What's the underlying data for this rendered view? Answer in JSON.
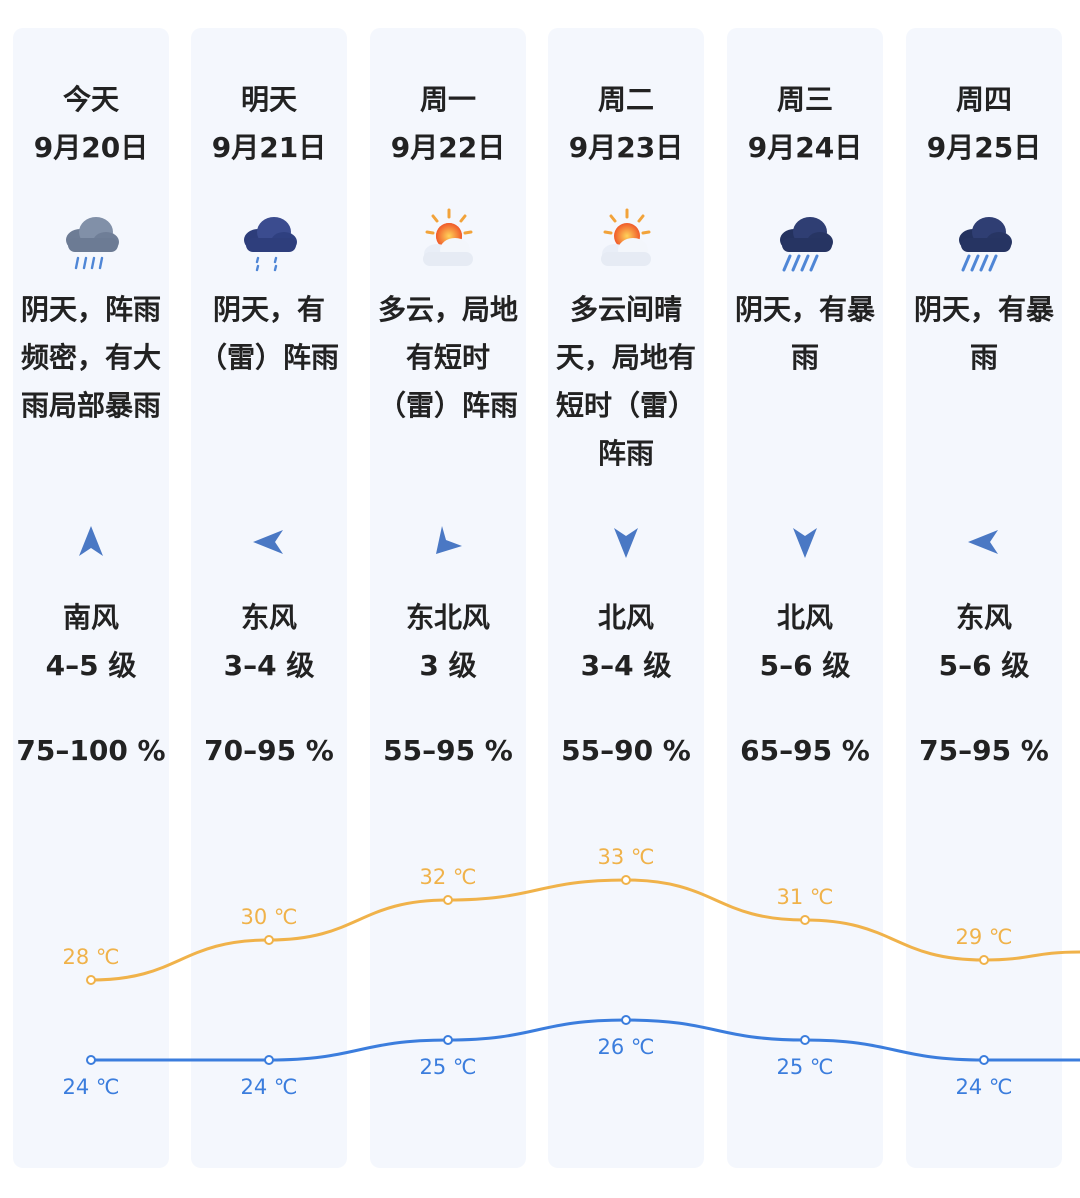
{
  "days": [
    {
      "name": "今天",
      "date": "9月20日",
      "icon": "heavy-rain-cloud-icon",
      "desc": "阴天，阵雨\n频密，有大\n雨局部暴雨",
      "wind_dir": "南风",
      "wind_level": "4–5 级",
      "wind_arrow": "north-arrow-icon",
      "humidity": "75–100 %",
      "high": "28 ℃",
      "low": "24 ℃"
    },
    {
      "name": "明天",
      "date": "9月21日",
      "icon": "rain-cloud-icon",
      "desc": "阴天，有\n（雷）阵雨",
      "wind_dir": "东风",
      "wind_level": "3–4 级",
      "wind_arrow": "west-arrow-icon",
      "humidity": "70–95 %",
      "high": "30 ℃",
      "low": "24 ℃"
    },
    {
      "name": "周一",
      "date": "9月22日",
      "icon": "partly-cloudy-sun-icon",
      "desc": "多云，局地\n有短时\n（雷）阵雨",
      "wind_dir": "东北风",
      "wind_level": "3 级",
      "wind_arrow": "southwest-arrow-icon",
      "humidity": "55–95 %",
      "high": "32 ℃",
      "low": "25 ℃"
    },
    {
      "name": "周二",
      "date": "9月23日",
      "icon": "partly-cloudy-sun-icon",
      "desc": "多云间晴\n天，局地有\n短时（雷）\n阵雨",
      "wind_dir": "北风",
      "wind_level": "3–4 级",
      "wind_arrow": "south-arrow-icon",
      "humidity": "55–90 %",
      "high": "33 ℃",
      "low": "26 ℃"
    },
    {
      "name": "周三",
      "date": "9月24日",
      "icon": "rainstorm-cloud-icon",
      "desc": "阴天，有暴\n雨",
      "wind_dir": "北风",
      "wind_level": "5–6 级",
      "wind_arrow": "south-arrow-icon",
      "humidity": "65–95 %",
      "high": "31 ℃",
      "low": "25 ℃"
    },
    {
      "name": "周四",
      "date": "9月25日",
      "icon": "rainstorm-cloud-icon",
      "desc": "阴天，有暴\n雨",
      "wind_dir": "东风",
      "wind_level": "5–6 级",
      "wind_arrow": "west-arrow-icon",
      "humidity": "75–95 %",
      "high": "29 ℃",
      "low": "24 ℃"
    }
  ],
  "chart_data": {
    "type": "line",
    "categories": [
      "9月20日",
      "9月21日",
      "9月22日",
      "9月23日",
      "9月24日",
      "9月25日"
    ],
    "series": [
      {
        "values": [
          28,
          30,
          32,
          33,
          31,
          29
        ],
        "color": "#f0b24a"
      },
      {
        "values": [
          24,
          24,
          25,
          26,
          25,
          24
        ],
        "color": "#3b7ddd"
      }
    ],
    "unit": "℃"
  },
  "colors": {
    "high_line": "#f0b24a",
    "low_line": "#3b7ddd",
    "arrow": "#4a78c4",
    "card_bg": "#f4f7fd"
  }
}
